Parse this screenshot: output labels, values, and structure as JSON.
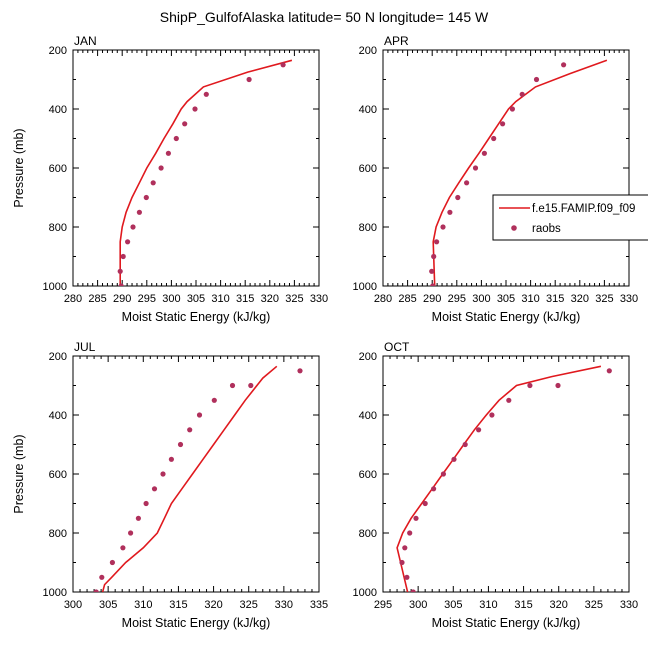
{
  "title": "ShipP_GulfofAlaska  latitude= 50 N longitude= 145 W",
  "legend": {
    "model_label": "f.e15.FAMIP.f09_f09",
    "obs_label": "raobs"
  },
  "colors": {
    "model_line": "#e0191e",
    "obs_marker": "#b0305c"
  },
  "chart_data": [
    {
      "type": "line",
      "panel": "JAN",
      "xlabel": "Moist Static Energy (kJ/kg)",
      "ylabel": "Pressure (mb)",
      "xlim": [
        280,
        330
      ],
      "ylim": [
        1000,
        200
      ],
      "y_reversed": true,
      "xticks": [
        280,
        285,
        290,
        295,
        300,
        305,
        310,
        315,
        320,
        325,
        330
      ],
      "yticks": [
        200,
        400,
        600,
        800,
        1000
      ],
      "series": [
        {
          "name": "f.e15.FAMIP.f09_f09",
          "kind": "line",
          "points": [
            [
              289.6,
              1000
            ],
            [
              289.6,
              950
            ],
            [
              289.6,
              900
            ],
            [
              289.6,
              850
            ],
            [
              290,
              800
            ],
            [
              290.8,
              750
            ],
            [
              292,
              700
            ],
            [
              293.5,
              650
            ],
            [
              295,
              600
            ],
            [
              296.8,
              550
            ],
            [
              298.5,
              500
            ],
            [
              300.3,
              450
            ],
            [
              302,
              400
            ],
            [
              303.2,
              375
            ],
            [
              306.5,
              325
            ],
            [
              315.5,
              275
            ],
            [
              324.5,
              235
            ]
          ]
        },
        {
          "name": "raobs",
          "kind": "marker",
          "points": [
            [
              289.8,
              1000
            ],
            [
              289.6,
              950
            ],
            [
              290.2,
              900
            ],
            [
              291.1,
              850
            ],
            [
              292.2,
              800
            ],
            [
              293.5,
              750
            ],
            [
              294.9,
              700
            ],
            [
              296.3,
              650
            ],
            [
              297.9,
              600
            ],
            [
              299.4,
              550
            ],
            [
              301,
              500
            ],
            [
              302.7,
              450
            ],
            [
              304.8,
              400
            ],
            [
              307.1,
              350
            ],
            [
              315.8,
              300
            ],
            [
              322.7,
              250
            ]
          ]
        }
      ]
    },
    {
      "type": "line",
      "panel": "APR",
      "xlabel": "Moist Static Energy (kJ/kg)",
      "ylabel": "",
      "xlim": [
        280,
        330
      ],
      "ylim": [
        1000,
        200
      ],
      "y_reversed": true,
      "xticks": [
        280,
        285,
        290,
        295,
        300,
        305,
        310,
        315,
        320,
        325,
        330
      ],
      "yticks": [
        200,
        400,
        600,
        800,
        1000
      ],
      "series": [
        {
          "name": "f.e15.FAMIP.f09_f09",
          "kind": "line",
          "points": [
            [
              290.5,
              1000
            ],
            [
              290.4,
              950
            ],
            [
              290.3,
              900
            ],
            [
              290.2,
              850
            ],
            [
              290.8,
              800
            ],
            [
              292,
              750
            ],
            [
              293.5,
              700
            ],
            [
              295.4,
              650
            ],
            [
              297.4,
              600
            ],
            [
              299.5,
              550
            ],
            [
              301.5,
              500
            ],
            [
              303.5,
              450
            ],
            [
              305.5,
              400
            ],
            [
              307,
              375
            ],
            [
              311,
              325
            ],
            [
              318,
              280
            ],
            [
              325.5,
              235
            ]
          ]
        },
        {
          "name": "raobs",
          "kind": "marker",
          "points": [
            [
              290.1,
              1000
            ],
            [
              289.9,
              950
            ],
            [
              290.3,
              900
            ],
            [
              290.9,
              850
            ],
            [
              292.2,
              800
            ],
            [
              293.6,
              750
            ],
            [
              295.2,
              700
            ],
            [
              297,
              650
            ],
            [
              298.8,
              600
            ],
            [
              300.6,
              550
            ],
            [
              302.5,
              500
            ],
            [
              304.3,
              450
            ],
            [
              306.3,
              400
            ],
            [
              308.3,
              350
            ],
            [
              311.2,
              300
            ],
            [
              316.7,
              250
            ]
          ]
        }
      ]
    },
    {
      "type": "line",
      "panel": "JUL",
      "xlabel": "Moist Static Energy (kJ/kg)",
      "ylabel": "Pressure (mb)",
      "xlim": [
        300,
        335
      ],
      "ylim": [
        1000,
        200
      ],
      "y_reversed": true,
      "xticks": [
        300,
        305,
        310,
        315,
        320,
        325,
        330,
        335
      ],
      "yticks": [
        200,
        400,
        600,
        800,
        1000
      ],
      "series": [
        {
          "name": "f.e15.FAMIP.f09_f09",
          "kind": "line",
          "points": [
            [
              304.1,
              1010
            ],
            [
              304.5,
              975
            ],
            [
              305.5,
              950
            ],
            [
              307.5,
              900
            ],
            [
              310,
              850
            ],
            [
              312,
              800
            ],
            [
              313,
              750
            ],
            [
              314,
              700
            ],
            [
              315.5,
              650
            ],
            [
              317,
              600
            ],
            [
              318.5,
              550
            ],
            [
              320,
              500
            ],
            [
              321.5,
              450
            ],
            [
              323,
              400
            ],
            [
              324.5,
              350
            ],
            [
              327,
              275
            ],
            [
              329,
              235
            ]
          ]
        },
        {
          "name": "raobs",
          "kind": "marker",
          "points": [
            [
              303.3,
              1000
            ],
            [
              304.1,
              950
            ],
            [
              305.6,
              900
            ],
            [
              307.1,
              850
            ],
            [
              308.2,
              800
            ],
            [
              309.3,
              750
            ],
            [
              310.4,
              700
            ],
            [
              311.6,
              650
            ],
            [
              312.8,
              600
            ],
            [
              314,
              550
            ],
            [
              315.3,
              500
            ],
            [
              316.6,
              450
            ],
            [
              318,
              400
            ],
            [
              320.1,
              350
            ],
            [
              322.7,
              300
            ],
            [
              325.3,
              300
            ],
            [
              332.3,
              250
            ]
          ]
        }
      ]
    },
    {
      "type": "line",
      "panel": "OCT",
      "xlabel": "Moist Static Energy (kJ/kg)",
      "ylabel": "",
      "xlim": [
        295,
        330
      ],
      "ylim": [
        1000,
        200
      ],
      "y_reversed": true,
      "xticks": [
        295,
        300,
        305,
        310,
        315,
        320,
        325,
        330
      ],
      "yticks": [
        200,
        400,
        600,
        800,
        1000
      ],
      "series": [
        {
          "name": "f.e15.FAMIP.f09_f09",
          "kind": "line",
          "points": [
            [
              298.5,
              1000
            ],
            [
              298,
              950
            ],
            [
              297.5,
              900
            ],
            [
              297,
              850
            ],
            [
              297.8,
              800
            ],
            [
              299,
              750
            ],
            [
              300.5,
              700
            ],
            [
              302,
              650
            ],
            [
              303.5,
              600
            ],
            [
              305,
              550
            ],
            [
              306.5,
              500
            ],
            [
              308,
              450
            ],
            [
              309.7,
              400
            ],
            [
              311.5,
              350
            ],
            [
              314,
              300
            ],
            [
              319,
              270
            ],
            [
              326,
              235
            ]
          ]
        },
        {
          "name": "raobs",
          "kind": "marker",
          "points": [
            [
              299.3,
              1000
            ],
            [
              298.4,
              950
            ],
            [
              297.7,
              900
            ],
            [
              298.1,
              850
            ],
            [
              298.8,
              800
            ],
            [
              299.7,
              750
            ],
            [
              301,
              700
            ],
            [
              302.2,
              650
            ],
            [
              303.6,
              600
            ],
            [
              305.1,
              550
            ],
            [
              306.7,
              500
            ],
            [
              308.6,
              450
            ],
            [
              310.5,
              400
            ],
            [
              312.9,
              350
            ],
            [
              315.9,
              300
            ],
            [
              319.9,
              300
            ],
            [
              327.2,
              250
            ]
          ]
        }
      ]
    }
  ]
}
